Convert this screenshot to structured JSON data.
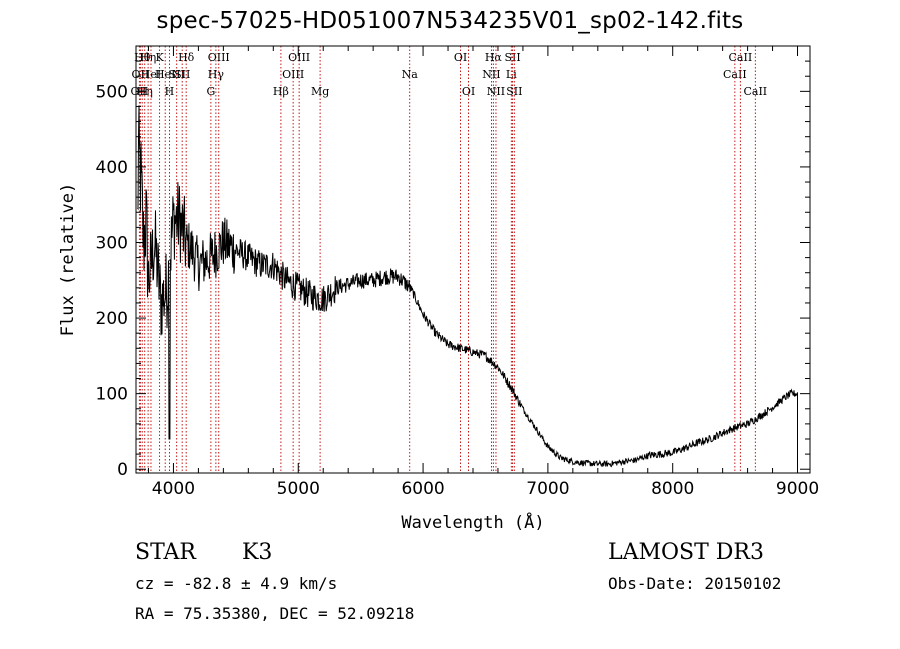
{
  "chart_data": {
    "type": "line",
    "title": "spec-57025-HD051007N534235V01_sp02-142.fits",
    "xlabel": "Wavelength (Å)",
    "ylabel": "Flux (relative)",
    "xlim": [
      3700,
      9100
    ],
    "ylim": [
      -5,
      560
    ],
    "xticks": [
      4000,
      5000,
      6000,
      7000,
      8000,
      9000
    ],
    "yticks": [
      0,
      100,
      200,
      300,
      400,
      500
    ],
    "series": [
      {
        "name": "flux",
        "x": [
          3700,
          3720,
          3740,
          3760,
          3780,
          3800,
          3850,
          3900,
          3950,
          4000,
          4050,
          4100,
          4150,
          4200,
          4300,
          4400,
          4500,
          4600,
          4700,
          4800,
          4900,
          5000,
          5100,
          5200,
          5300,
          5400,
          5500,
          5600,
          5700,
          5800,
          5900,
          6000,
          6100,
          6200,
          6300,
          6400,
          6500,
          6600,
          6700,
          6800,
          6900,
          7000,
          7100,
          7200,
          7300,
          7400,
          7500,
          7600,
          7700,
          7800,
          7900,
          8000,
          8100,
          8200,
          8300,
          8400,
          8500,
          8600,
          8700,
          8800,
          8900,
          8950,
          9000
        ],
        "values": [
          180,
          420,
          380,
          300,
          330,
          250,
          300,
          220,
          240,
          330,
          330,
          300,
          290,
          270,
          280,
          300,
          290,
          280,
          270,
          270,
          250,
          240,
          230,
          225,
          240,
          245,
          250,
          250,
          255,
          255,
          240,
          205,
          180,
          165,
          160,
          155,
          150,
          135,
          110,
          80,
          55,
          30,
          15,
          10,
          8,
          7,
          7,
          10,
          12,
          18,
          20,
          22,
          28,
          35,
          40,
          48,
          55,
          60,
          70,
          82,
          95,
          100,
          100
        ]
      }
    ],
    "lines": [
      {
        "x": 3727,
        "label": "OII",
        "row": 3
      },
      {
        "x": 3735,
        "label": "OII",
        "row": 2
      },
      {
        "x": 3750,
        "label": "Hθ",
        "row": 1
      },
      {
        "x": 3770,
        "label": "Hη",
        "row": 3
      },
      {
        "x": 3797,
        "label": "Hη",
        "row": 1
      },
      {
        "x": 3820,
        "label": "HeI",
        "row": 2
      },
      {
        "x": 3889,
        "label": "K",
        "row": 1
      },
      {
        "x": 3934,
        "label": "HeI",
        "row": 2
      },
      {
        "x": 3968,
        "label": "H",
        "row": 3
      },
      {
        "x": 4026,
        "label": "SII",
        "row": 2
      },
      {
        "x": 4070,
        "label": "SII",
        "row": 2
      },
      {
        "x": 4102,
        "label": "Hδ",
        "row": 1
      },
      {
        "x": 4300,
        "label": "G",
        "row": 3
      },
      {
        "x": 4340,
        "label": "Hγ",
        "row": 2
      },
      {
        "x": 4363,
        "label": "OIII",
        "row": 1
      },
      {
        "x": 4861,
        "label": "Hβ",
        "row": 3
      },
      {
        "x": 4959,
        "label": "OIII",
        "row": 2
      },
      {
        "x": 5007,
        "label": "OIII",
        "row": 1
      },
      {
        "x": 5175,
        "label": "Mg",
        "row": 3
      },
      {
        "x": 5893,
        "label": "Na",
        "row": 2
      },
      {
        "x": 6300,
        "label": "OI",
        "row": 1
      },
      {
        "x": 6364,
        "label": "OI",
        "row": 3
      },
      {
        "x": 6548,
        "label": "NII",
        "row": 2
      },
      {
        "x": 6563,
        "label": "Hα",
        "row": 1
      },
      {
        "x": 6584,
        "label": "NII",
        "row": 3
      },
      {
        "x": 6707,
        "label": "Li",
        "row": 2
      },
      {
        "x": 6717,
        "label": "SII",
        "row": 1
      },
      {
        "x": 6731,
        "label": "SII",
        "row": 3
      },
      {
        "x": 8498,
        "label": "CaII",
        "row": 2
      },
      {
        "x": 8542,
        "label": "CaII",
        "row": 1
      },
      {
        "x": 8662,
        "label": "CaII",
        "row": 3
      }
    ]
  },
  "info": {
    "object_class": "STAR",
    "subclass": "K3",
    "survey": "LAMOST DR3",
    "redshift": "cz = -82.8 ± 4.9 km/s",
    "obs_date": "Obs-Date: 20150102",
    "coords": "RA =  75.35380, DEC =  52.09218"
  },
  "colors": {
    "line_marker": "#c00000",
    "spectrum": "#000000",
    "axes": "#000000"
  }
}
